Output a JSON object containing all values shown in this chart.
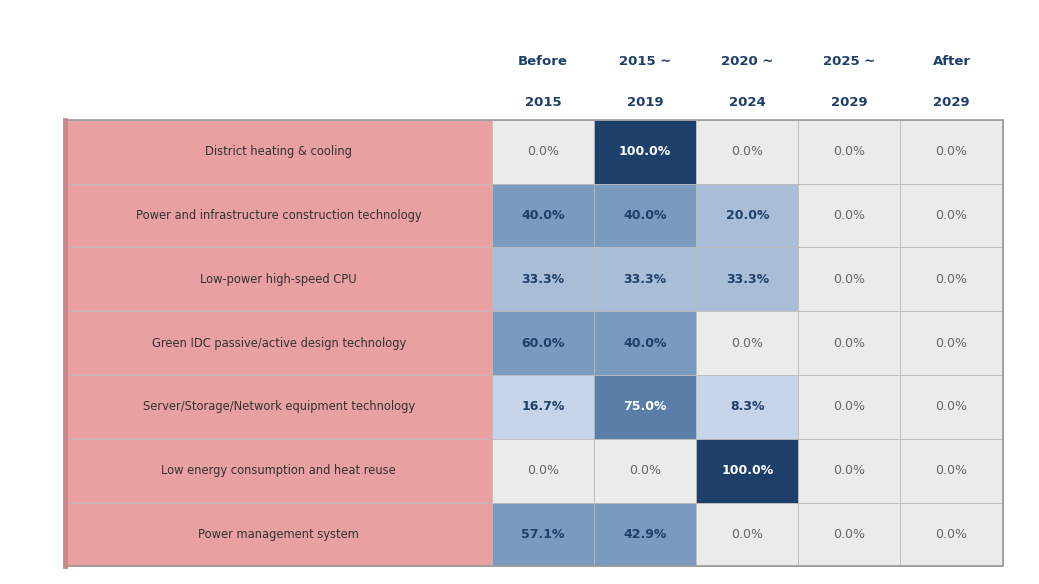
{
  "rows": [
    "District heating & cooling",
    "Power and infrastructure construction technology",
    "Low-power high-speed CPU",
    "Green IDC passive/active design technology",
    "Server/Storage/Network equipment technology",
    "Low energy consumption and heat reuse",
    "Power management system"
  ],
  "col_headers": [
    [
      "Before",
      "2015"
    ],
    [
      "2015 ~",
      "2019"
    ],
    [
      "2020 ~",
      "2024"
    ],
    [
      "2025 ~",
      "2029"
    ],
    [
      "After",
      "2029"
    ]
  ],
  "values": [
    [
      0.0,
      100.0,
      0.0,
      0.0,
      0.0
    ],
    [
      40.0,
      40.0,
      20.0,
      0.0,
      0.0
    ],
    [
      33.3,
      33.3,
      33.3,
      0.0,
      0.0
    ],
    [
      60.0,
      40.0,
      0.0,
      0.0,
      0.0
    ],
    [
      16.7,
      75.0,
      8.3,
      0.0,
      0.0
    ],
    [
      0.0,
      0.0,
      100.0,
      0.0,
      0.0
    ],
    [
      57.1,
      42.9,
      0.0,
      0.0,
      0.0
    ]
  ],
  "row_bg_color": "#e8a0a0",
  "zero_bg_color": "#ebebeb",
  "low_color": "#c5d4e8",
  "mid_low_color": "#aabdd6",
  "mid_color": "#7a9abf",
  "mid_high_color": "#5b7ea8",
  "high_color": "#1f3f6b",
  "border_color": "#bbbbbb",
  "left_border_color": "#cc8888",
  "header_text_color": "#1f3f6b",
  "label_text_color": "#333333",
  "zero_text_color": "#666666",
  "nonzero_dark_text_color": "#1f3f6b",
  "high_text_color": "#ffffff",
  "figure_bg": "#ffffff",
  "outer_border_color": "#999999"
}
